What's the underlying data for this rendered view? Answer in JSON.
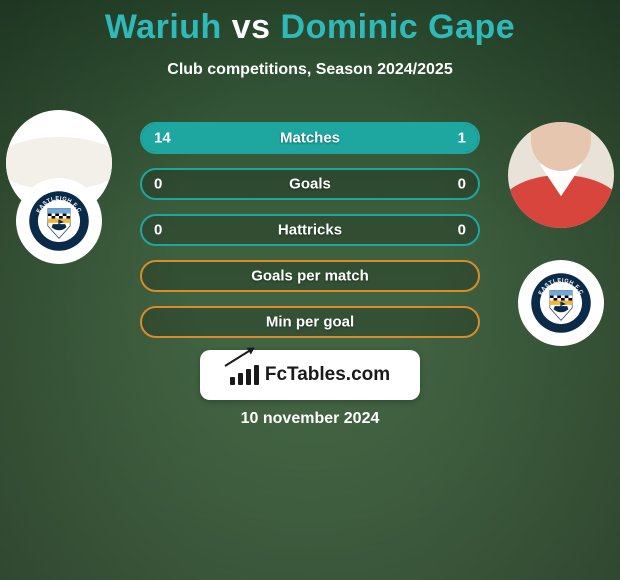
{
  "title": {
    "left": "Wariuh",
    "vs": "vs",
    "right": "Dominic Gape"
  },
  "subtitle": "Club competitions, Season 2024/2025",
  "colors": {
    "title_teal": "#2fb9b9",
    "title_white": "#ffffff",
    "row_border_teal": "#1ea7a0",
    "row_fill_teal": "#1ea7a0",
    "row_border_orange": "#d98c2a",
    "row_fill_orange": "#d98c2a",
    "row_bg": "rgba(0,0,0,0.18)",
    "text": "#ffffff",
    "logo_bg": "#ffffff",
    "logo_text": "#1a1a1a"
  },
  "rows": [
    {
      "label": "Matches",
      "left_val": "14",
      "right_val": "1",
      "left_pct": 80,
      "right_pct": 20,
      "scheme": "teal"
    },
    {
      "label": "Goals",
      "left_val": "0",
      "right_val": "0",
      "left_pct": 0,
      "right_pct": 0,
      "scheme": "teal"
    },
    {
      "label": "Hattricks",
      "left_val": "0",
      "right_val": "0",
      "left_pct": 0,
      "right_pct": 0,
      "scheme": "teal"
    },
    {
      "label": "Goals per match",
      "left_val": "",
      "right_val": "",
      "left_pct": 0,
      "right_pct": 0,
      "scheme": "orange"
    },
    {
      "label": "Min per goal",
      "left_val": "",
      "right_val": "",
      "left_pct": 0,
      "right_pct": 0,
      "scheme": "orange"
    }
  ],
  "logo_text": "FcTables.com",
  "logo_bar_heights": [
    8,
    12,
    16,
    20
  ],
  "date": "10 november 2024",
  "crest": {
    "ring": "#0a2a4a",
    "ring_text": "EASTLEIGH F.C",
    "band": "#f2b636",
    "checker": "#000000"
  }
}
